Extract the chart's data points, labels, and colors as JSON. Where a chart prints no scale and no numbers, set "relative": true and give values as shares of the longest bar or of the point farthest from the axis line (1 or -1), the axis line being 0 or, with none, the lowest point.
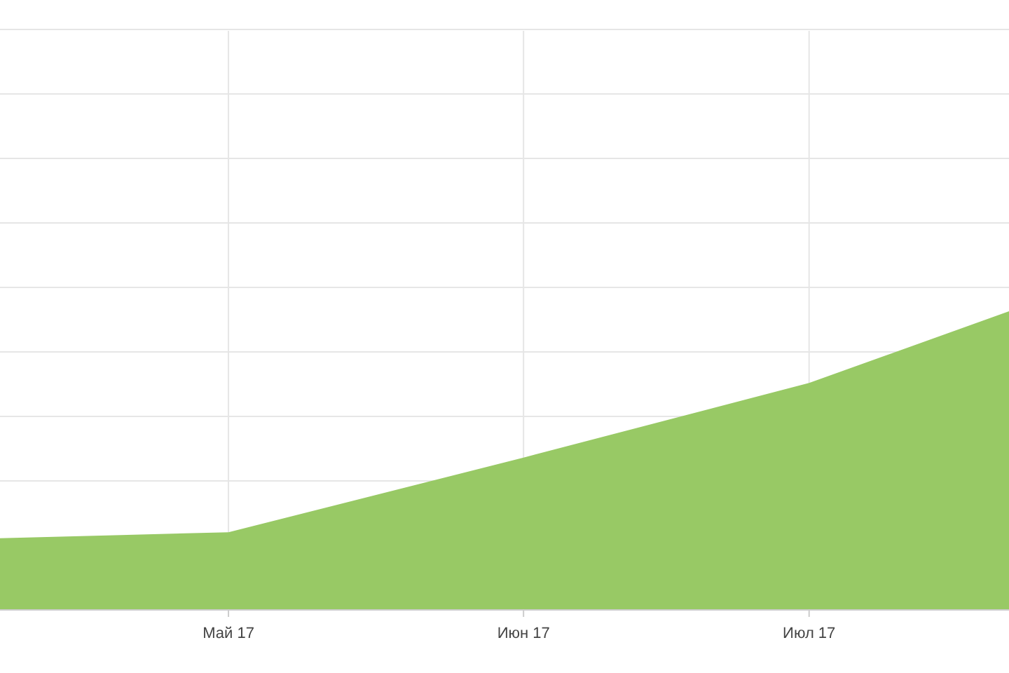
{
  "chart_data": {
    "type": "area",
    "relative": true,
    "x": [
      "2017-04-07",
      "2017-05-01",
      "2017-06-01",
      "2017-07-01",
      "2017-07-22"
    ],
    "series": [
      {
        "color": "#98c965",
        "values": [
          0.24,
          0.26,
          0.51,
          0.76,
          1
        ]
      }
    ],
    "xlim": [
      "2017-04-07",
      "2017-07-22"
    ],
    "xticks": [
      {
        "value": "2017-05-01",
        "label": "Май 17"
      },
      {
        "value": "2017-06-01",
        "label": "Июн 17"
      },
      {
        "value": "2017-07-01",
        "label": "Июл 17"
      }
    ],
    "grid": true
  }
}
